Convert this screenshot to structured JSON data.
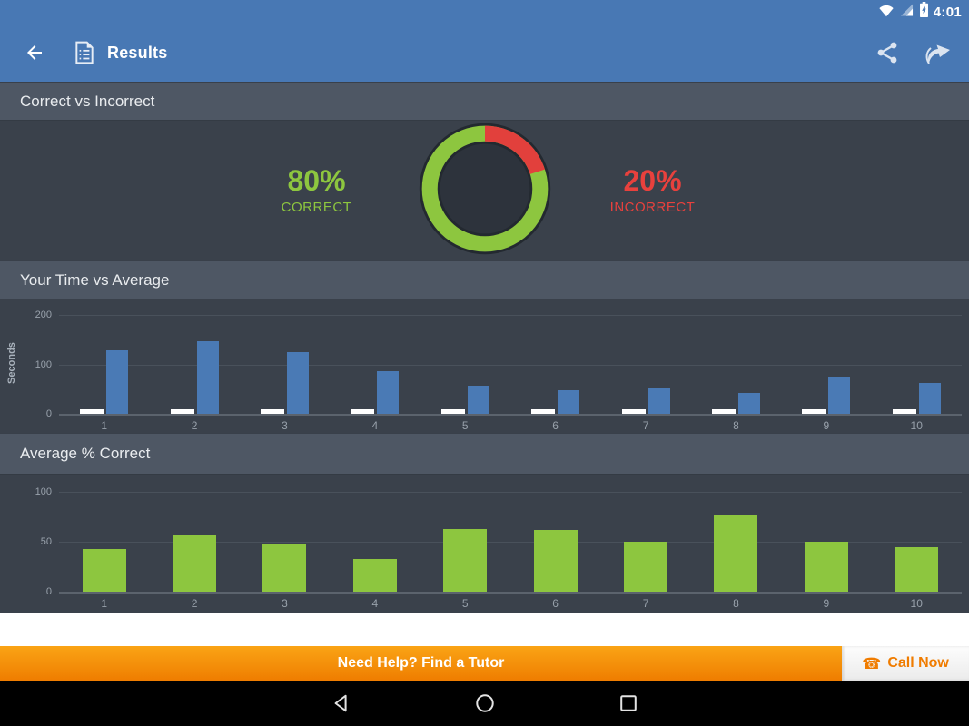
{
  "status_bar": {
    "time": "4:01",
    "icons": [
      "wifi-icon",
      "cell-signal-icon",
      "battery-charging-icon"
    ]
  },
  "app_bar": {
    "title": "Results",
    "icons": [
      "back-arrow-icon",
      "document-icon",
      "share-icon",
      "forward-arrow-icon"
    ]
  },
  "headers": {
    "correct_vs_incorrect": "Correct vs Incorrect",
    "time_vs_average": "Your Time vs Average",
    "average_pct_correct": "Average % Correct"
  },
  "summary": {
    "correct_pct": "80%",
    "correct_label": "CORRECT",
    "incorrect_pct": "20%",
    "incorrect_label": "INCORRECT"
  },
  "banner": {
    "text": "Need Help? Find a Tutor",
    "call_label": "Call Now",
    "phone_icon": "phone-icon"
  },
  "colors": {
    "app_blue": "#4878b4",
    "section_bg": "#3a414b",
    "header_bg": "#4e5764",
    "green": "#8dc63f",
    "red": "#e2403c",
    "bar_blue": "#4a7ab5",
    "bar_white": "#ffffff",
    "banner_orange": "#ef7d00"
  },
  "chart_data": [
    {
      "type": "pie",
      "subtype": "donut",
      "title": "Correct vs Incorrect",
      "labels": [
        "CORRECT",
        "INCORRECT"
      ],
      "values": [
        80,
        20
      ],
      "colors": [
        "#8dc63f",
        "#e2403c"
      ]
    },
    {
      "type": "bar",
      "title": "Your Time vs Average",
      "ylabel": "Seconds",
      "ylim": [
        0,
        200
      ],
      "yticks": [
        0,
        100,
        200
      ],
      "grid": true,
      "legend": "none",
      "categories": [
        "1",
        "2",
        "3",
        "4",
        "5",
        "6",
        "7",
        "8",
        "9",
        "10"
      ],
      "series": [
        {
          "name": "your-time",
          "color": "#ffffff",
          "values": [
            10,
            10,
            10,
            10,
            10,
            10,
            10,
            10,
            10,
            10
          ]
        },
        {
          "name": "average",
          "color": "#4a7ab5",
          "values": [
            128,
            146,
            125,
            87,
            57,
            47,
            52,
            43,
            76,
            63
          ]
        }
      ]
    },
    {
      "type": "bar",
      "title": "Average % Correct",
      "ylabel": "",
      "ylim": [
        0,
        100
      ],
      "yticks": [
        0,
        50,
        100
      ],
      "grid": true,
      "legend": "none",
      "categories": [
        "1",
        "2",
        "3",
        "4",
        "5",
        "6",
        "7",
        "8",
        "9",
        "10"
      ],
      "series": [
        {
          "name": "average-correct",
          "color": "#8dc63f",
          "values": [
            43,
            57,
            48,
            33,
            63,
            62,
            50,
            77,
            50,
            45
          ]
        }
      ]
    }
  ],
  "navbar": {
    "icons": [
      "back-triangle-icon",
      "home-circle-icon",
      "recents-square-icon"
    ]
  }
}
